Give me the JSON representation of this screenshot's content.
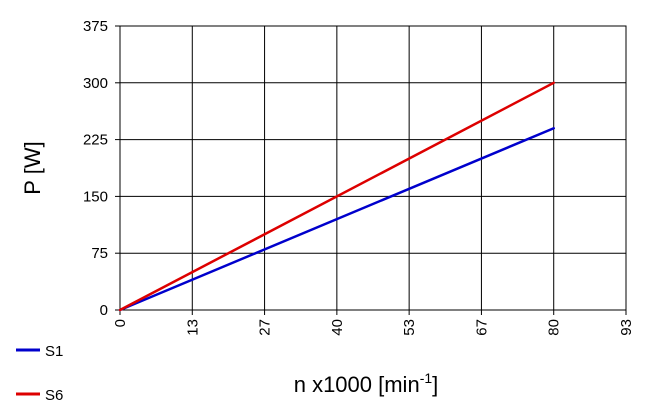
{
  "chart_data": {
    "type": "line",
    "xlabel_main": "n x1000 [min",
    "xlabel_sup": "-1",
    "xlabel_tail": "]",
    "ylabel": "P [W]",
    "x_ticks": [
      "0",
      "13",
      "27",
      "40",
      "53",
      "67",
      "80",
      "93"
    ],
    "y_ticks": [
      "0",
      "75",
      "150",
      "225",
      "300",
      "375"
    ],
    "xlim": [
      0,
      93.33
    ],
    "ylim": [
      0,
      375
    ],
    "grid": true,
    "legend_position": "bottom-left",
    "series": [
      {
        "name": "S1",
        "color": "#0000cc",
        "x": [
          0,
          80
        ],
        "y": [
          0,
          240
        ]
      },
      {
        "name": "S6",
        "color": "#dd0000",
        "x": [
          0,
          80
        ],
        "y": [
          0,
          300
        ]
      }
    ]
  }
}
